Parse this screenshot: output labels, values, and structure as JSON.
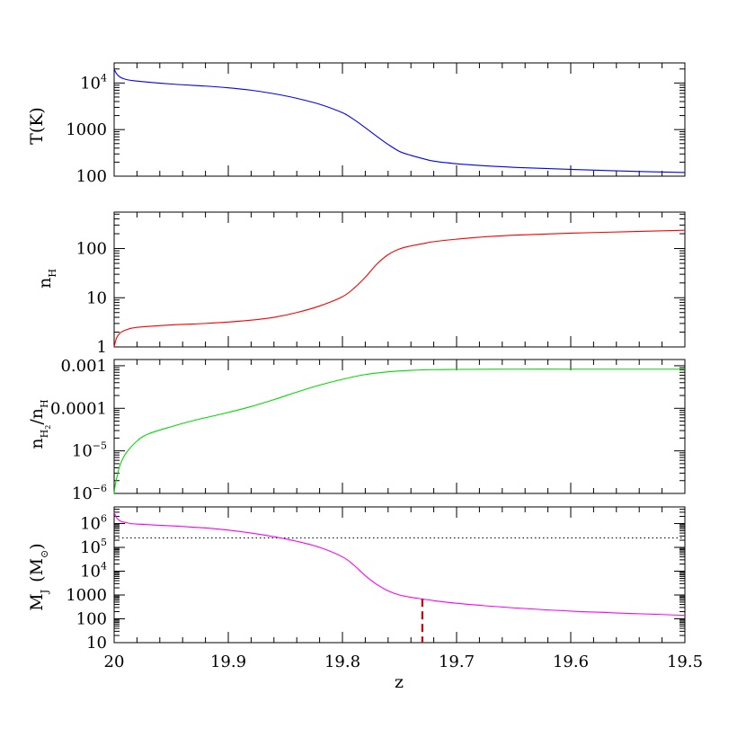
{
  "chart_data": [
    {
      "type": "line",
      "ylabel": "T(K)",
      "yscale": "log",
      "ylim": [
        100,
        27000
      ],
      "y_ticks": [
        {
          "value": 100,
          "label": "100"
        },
        {
          "value": 1000,
          "label": "1000"
        },
        {
          "value": 10000,
          "label": "10",
          "sup": "4"
        }
      ],
      "xlim": [
        20,
        19.5
      ],
      "series": [
        {
          "color": "#0000ff",
          "x": [
            20.0,
            19.998,
            19.995,
            19.99,
            19.98,
            19.95,
            19.92,
            19.9,
            19.88,
            19.86,
            19.84,
            19.82,
            19.8,
            19.79,
            19.78,
            19.77,
            19.76,
            19.75,
            19.74,
            19.73,
            19.72,
            19.7,
            19.68,
            19.65,
            19.6,
            19.55,
            19.5
          ],
          "y": [
            20000,
            16000,
            13500,
            12000,
            11000,
            9500,
            8600,
            7900,
            7000,
            5900,
            4700,
            3500,
            2300,
            1650,
            1100,
            720,
            480,
            340,
            280,
            240,
            210,
            185,
            170,
            155,
            140,
            128,
            120
          ]
        }
      ]
    },
    {
      "type": "line",
      "ylabel": "n",
      "ylabel_sub": "H",
      "yscale": "log",
      "ylim": [
        1,
        550
      ],
      "y_ticks": [
        {
          "value": 1,
          "label": "1"
        },
        {
          "value": 10,
          "label": "10"
        },
        {
          "value": 100,
          "label": "100"
        }
      ],
      "xlim": [
        20,
        19.5
      ],
      "series": [
        {
          "color": "#ff0000",
          "x": [
            20.0,
            19.998,
            19.995,
            19.99,
            19.98,
            19.95,
            19.92,
            19.9,
            19.88,
            19.86,
            19.84,
            19.82,
            19.8,
            19.79,
            19.78,
            19.77,
            19.76,
            19.75,
            19.74,
            19.73,
            19.72,
            19.7,
            19.68,
            19.65,
            19.6,
            19.55,
            19.5
          ],
          "y": [
            1.0,
            1.5,
            1.9,
            2.2,
            2.5,
            2.8,
            3.0,
            3.2,
            3.5,
            4.0,
            5.0,
            6.8,
            10.5,
            15.5,
            26,
            48,
            75,
            98,
            113,
            125,
            138,
            155,
            170,
            187,
            205,
            220,
            235
          ]
        }
      ]
    },
    {
      "type": "line",
      "ylabel": "n",
      "ylabel_parts": {
        "num_sub": "H",
        "num_subsub": "2",
        "slash": "/",
        "den": "n",
        "den_sub": "H"
      },
      "yscale": "log",
      "ylim": [
        1e-06,
        0.0014
      ],
      "y_ticks": [
        {
          "value": 1e-06,
          "label": "10",
          "sup": "−6"
        },
        {
          "value": 1e-05,
          "label": "10",
          "sup": "−5"
        },
        {
          "value": 0.0001,
          "label": "0.0001"
        },
        {
          "value": 0.001,
          "label": "0.001"
        }
      ],
      "xlim": [
        20,
        19.5
      ],
      "series": [
        {
          "color": "#00dd00",
          "x": [
            20.0,
            19.999,
            19.997,
            19.995,
            19.99,
            19.98,
            19.97,
            19.95,
            19.93,
            19.9,
            19.88,
            19.86,
            19.84,
            19.82,
            19.8,
            19.78,
            19.76,
            19.74,
            19.72,
            19.7,
            19.65,
            19.6,
            19.55,
            19.5
          ],
          "y": [
            1e-06,
            1.6e-06,
            2.8e-06,
            4.5e-06,
            8.5e-06,
            1.7e-05,
            2.5e-05,
            3.7e-05,
            5.2e-05,
            8e-05,
            0.00011,
            0.00016,
            0.00024,
            0.00035,
            0.00048,
            0.00062,
            0.00072,
            0.00078,
            0.00081,
            0.00082,
            0.00083,
            0.00083,
            0.00083,
            0.00083
          ]
        }
      ]
    },
    {
      "type": "line",
      "xlabel": "z",
      "ylabel": "M",
      "ylabel_sub": "J",
      "ylabel_unit": "(M",
      "ylabel_unit_sub": "⊙",
      "ylabel_close": ")",
      "yscale": "log",
      "ylim": [
        10,
        5000000
      ],
      "y_ticks": [
        {
          "value": 10,
          "label": "10"
        },
        {
          "value": 100,
          "label": "100"
        },
        {
          "value": 1000,
          "label": "1000"
        },
        {
          "value": 10000,
          "label": "10",
          "sup": "4"
        },
        {
          "value": 100000,
          "label": "10",
          "sup": "5"
        },
        {
          "value": 1000000,
          "label": "10",
          "sup": "6"
        }
      ],
      "xlim": [
        20,
        19.5
      ],
      "x_ticks": [
        {
          "value": 20,
          "label": "20"
        },
        {
          "value": 19.9,
          "label": "19.9"
        },
        {
          "value": 19.8,
          "label": "19.8"
        },
        {
          "value": 19.7,
          "label": "19.7"
        },
        {
          "value": 19.6,
          "label": "19.6"
        },
        {
          "value": 19.5,
          "label": "19.5"
        }
      ],
      "reference_line": {
        "y": 250000,
        "style": "dotted",
        "color": "#000000"
      },
      "marker_line": {
        "x": 19.73,
        "y_from": 10,
        "y_to": 700,
        "style": "dashed",
        "color": "#dd0000"
      },
      "series": [
        {
          "color": "#ff00ff",
          "x": [
            20.0,
            19.998,
            19.995,
            19.99,
            19.98,
            19.95,
            19.92,
            19.9,
            19.88,
            19.86,
            19.84,
            19.82,
            19.8,
            19.79,
            19.78,
            19.77,
            19.76,
            19.75,
            19.74,
            19.73,
            19.72,
            19.7,
            19.68,
            19.65,
            19.6,
            19.55,
            19.5
          ],
          "y": [
            3000000,
            1800000,
            1300000,
            1100000,
            950000,
            800000,
            650000,
            530000,
            400000,
            280000,
            180000,
            100000,
            40000,
            18000,
            6500,
            2800,
            1500,
            1000,
            800,
            680,
            580,
            450,
            370,
            290,
            210,
            170,
            140
          ]
        }
      ]
    }
  ]
}
